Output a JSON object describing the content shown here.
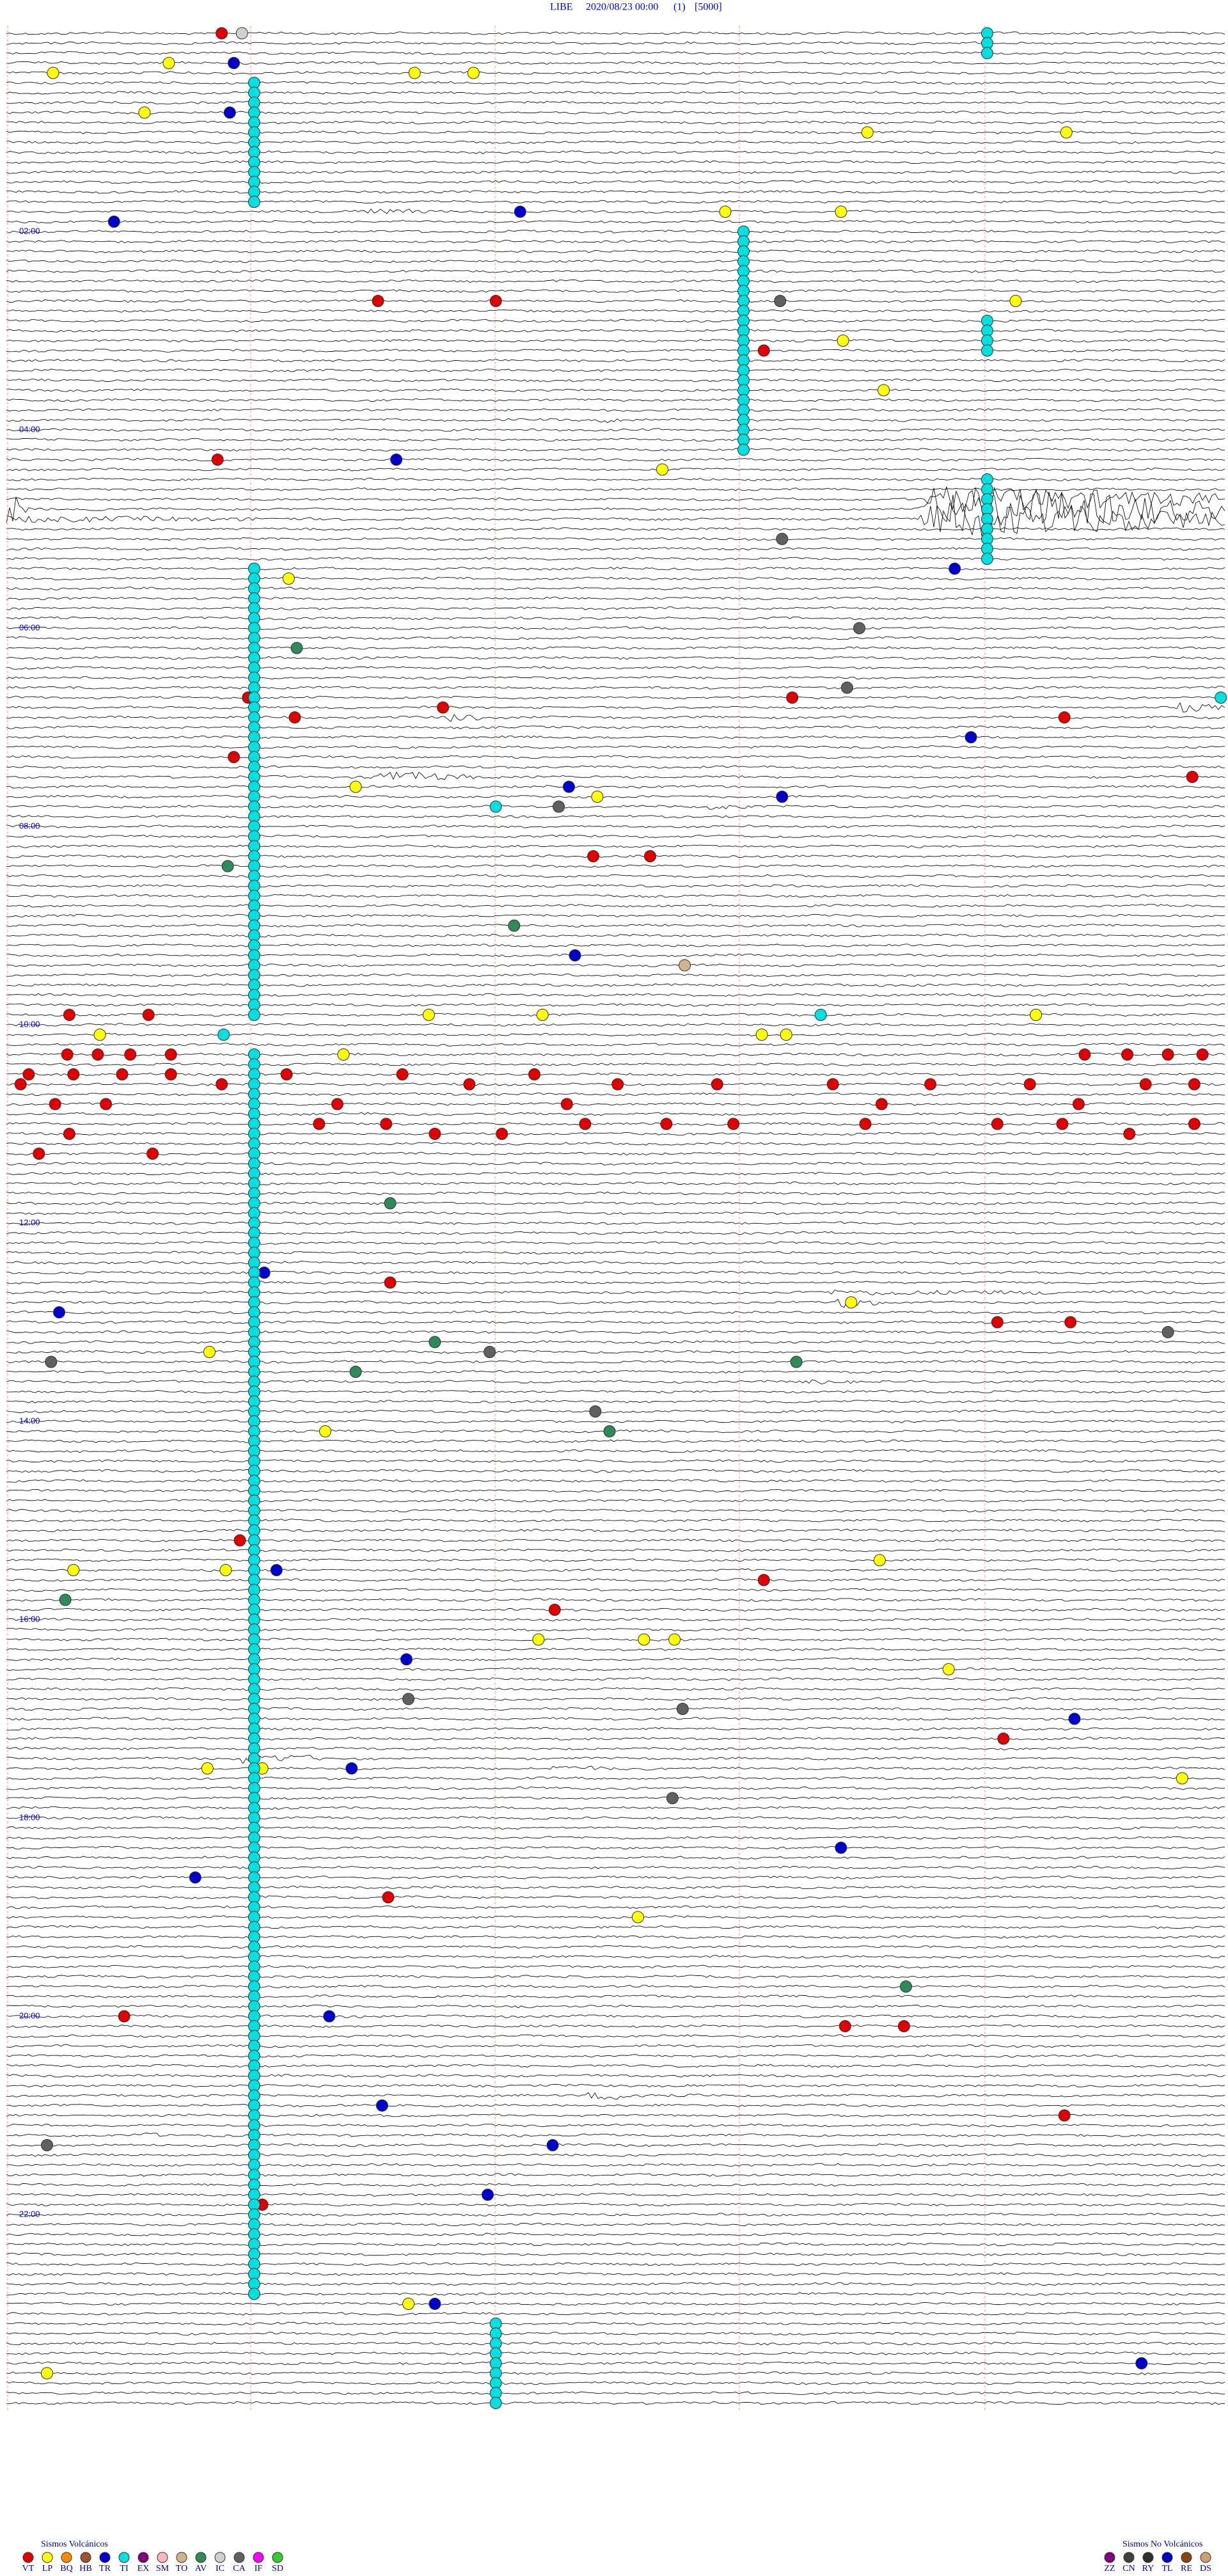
{
  "header": {
    "station": "LIBE",
    "datetime": "2020/08/23 00:00",
    "channel": "(1)",
    "scale": "[5000]"
  },
  "hour_labels": [
    "02:00",
    "04:00",
    "06:00",
    "08:00",
    "10:00",
    "12:00",
    "14:00",
    "16:00",
    "18:00",
    "20:00",
    "22:00"
  ],
  "events": [
    {
      "c": "VT",
      "l": 0,
      "m": 1.06
    },
    {
      "c": "IC",
      "l": 0,
      "m": 1.16
    },
    {
      "c": "LP",
      "l": 4,
      "m": 0.23
    },
    {
      "c": "LP",
      "l": 3,
      "m": 0.8
    },
    {
      "c": "TR",
      "l": 3,
      "m": 1.12
    },
    {
      "c": "LP",
      "l": 4,
      "m": 2.01
    },
    {
      "c": "LP",
      "l": 4,
      "m": 2.3
    },
    {
      "c": "LP",
      "l": 8,
      "m": 0.68
    },
    {
      "c": "TR",
      "l": 8,
      "m": 1.1
    },
    {
      "c": "LP",
      "l": 10,
      "m": 4.24
    },
    {
      "c": "LP",
      "l": 10,
      "m": 5.22
    },
    {
      "c": "TR",
      "l": 19,
      "m": 0.53
    },
    {
      "c": "LP",
      "l": 18,
      "m": 3.54
    },
    {
      "c": "LP",
      "l": 18,
      "m": 4.11
    },
    {
      "c": "TR",
      "l": 18,
      "m": 2.53
    },
    {
      "c": "VT",
      "l": 27,
      "m": 1.83
    },
    {
      "c": "VT",
      "l": 27,
      "m": 2.41
    },
    {
      "c": "LP",
      "l": 27,
      "m": 4.97
    },
    {
      "c": "CA",
      "l": 27,
      "m": 3.81
    },
    {
      "c": "VT",
      "l": 32,
      "m": 3.73
    },
    {
      "c": "LP",
      "l": 31,
      "m": 4.12
    },
    {
      "c": "LP",
      "l": 36,
      "m": 4.32
    },
    {
      "c": "TR",
      "l": 43,
      "m": 1.92
    },
    {
      "c": "VT",
      "l": 43,
      "m": 1.04
    },
    {
      "c": "LP",
      "l": 44,
      "m": 3.23
    },
    {
      "c": "CA",
      "l": 51,
      "m": 3.82
    },
    {
      "c": "TR",
      "l": 54,
      "m": 4.67
    },
    {
      "c": "LP",
      "l": 55,
      "m": 1.39
    },
    {
      "c": "CA",
      "l": 60,
      "m": 4.2
    },
    {
      "c": "AV",
      "l": 62,
      "m": 1.43
    },
    {
      "c": "CA",
      "l": 66,
      "m": 4.14
    },
    {
      "c": "VT",
      "l": 67,
      "m": 3.87
    },
    {
      "c": "VT",
      "l": 67,
      "m": 1.19
    },
    {
      "c": "VT",
      "l": 69,
      "m": 1.42
    },
    {
      "c": "VT",
      "l": 68,
      "m": 2.15
    },
    {
      "c": "VT",
      "l": 69,
      "m": 5.21
    },
    {
      "c": "TR",
      "l": 71,
      "m": 4.75
    },
    {
      "c": "VT",
      "l": 73,
      "m": 1.12
    },
    {
      "c": "VT",
      "l": 75,
      "m": 5.84
    },
    {
      "c": "LP",
      "l": 76,
      "m": 1.72
    },
    {
      "c": "LP",
      "l": 77,
      "m": 2.91
    },
    {
      "c": "TR",
      "l": 76,
      "m": 2.77
    },
    {
      "c": "TR",
      "l": 77,
      "m": 3.82
    },
    {
      "c": "CA",
      "l": 78,
      "m": 2.72
    },
    {
      "c": "TI",
      "l": 78,
      "m": 2.41
    },
    {
      "c": "AV",
      "l": 84,
      "m": 1.09
    },
    {
      "c": "VT",
      "l": 83,
      "m": 2.89
    },
    {
      "c": "VT",
      "l": 83,
      "m": 3.17
    },
    {
      "c": "TR",
      "l": 93,
      "m": 2.8
    },
    {
      "c": "AV",
      "l": 90,
      "m": 2.5
    },
    {
      "c": "TO",
      "l": 94,
      "m": 3.34
    },
    {
      "c": "VT",
      "l": 99,
      "m": 0.31
    },
    {
      "c": "VT",
      "l": 99,
      "m": 0.7
    },
    {
      "c": "LP",
      "l": 99,
      "m": 2.08
    },
    {
      "c": "LP",
      "l": 99,
      "m": 2.64
    },
    {
      "c": "TI",
      "l": 99,
      "m": 4.01
    },
    {
      "c": "LP",
      "l": 99,
      "m": 5.07
    },
    {
      "c": "LP",
      "l": 101,
      "m": 0.46
    },
    {
      "c": "LP",
      "l": 101,
      "m": 3.72
    },
    {
      "c": "LP",
      "l": 101,
      "m": 3.84
    },
    {
      "c": "TI",
      "l": 101,
      "m": 1.07
    },
    {
      "c": "LP",
      "l": 103,
      "m": 1.66
    },
    {
      "c": "VT",
      "l": 103,
      "m": 0.3
    },
    {
      "c": "VT",
      "l": 103,
      "m": 0.45
    },
    {
      "c": "VT",
      "l": 103,
      "m": 0.61
    },
    {
      "c": "VT",
      "l": 103,
      "m": 0.81
    },
    {
      "c": "VT",
      "l": 103,
      "m": 5.31
    },
    {
      "c": "VT",
      "l": 103,
      "m": 5.52
    },
    {
      "c": "VT",
      "l": 103,
      "m": 5.72
    },
    {
      "c": "VT",
      "l": 103,
      "m": 5.89
    },
    {
      "c": "VT",
      "l": 105,
      "m": 0.11
    },
    {
      "c": "VT",
      "l": 105,
      "m": 0.33
    },
    {
      "c": "VT",
      "l": 105,
      "m": 0.57
    },
    {
      "c": "VT",
      "l": 105,
      "m": 0.81
    },
    {
      "c": "VT",
      "l": 105,
      "m": 1.38
    },
    {
      "c": "VT",
      "l": 105,
      "m": 1.95
    },
    {
      "c": "VT",
      "l": 105,
      "m": 2.6
    },
    {
      "c": "VT",
      "l": 106,
      "m": 0.07
    },
    {
      "c": "VT",
      "l": 106,
      "m": 1.06
    },
    {
      "c": "VT",
      "l": 106,
      "m": 2.28
    },
    {
      "c": "VT",
      "l": 106,
      "m": 3.01
    },
    {
      "c": "VT",
      "l": 106,
      "m": 3.5
    },
    {
      "c": "VT",
      "l": 106,
      "m": 4.07
    },
    {
      "c": "VT",
      "l": 106,
      "m": 4.55
    },
    {
      "c": "VT",
      "l": 106,
      "m": 5.04
    },
    {
      "c": "VT",
      "l": 106,
      "m": 5.61
    },
    {
      "c": "VT",
      "l": 106,
      "m": 5.85
    },
    {
      "c": "VT",
      "l": 108,
      "m": 0.24
    },
    {
      "c": "VT",
      "l": 108,
      "m": 0.49
    },
    {
      "c": "VT",
      "l": 108,
      "m": 1.63
    },
    {
      "c": "VT",
      "l": 108,
      "m": 2.76
    },
    {
      "c": "VT",
      "l": 108,
      "m": 4.31
    },
    {
      "c": "VT",
      "l": 108,
      "m": 5.28
    },
    {
      "c": "VT",
      "l": 110,
      "m": 1.22
    },
    {
      "c": "VT",
      "l": 110,
      "m": 1.54
    },
    {
      "c": "VT",
      "l": 110,
      "m": 1.87
    },
    {
      "c": "VT",
      "l": 110,
      "m": 2.85
    },
    {
      "c": "VT",
      "l": 110,
      "m": 3.25
    },
    {
      "c": "VT",
      "l": 110,
      "m": 3.58
    },
    {
      "c": "VT",
      "l": 110,
      "m": 4.23
    },
    {
      "c": "VT",
      "l": 110,
      "m": 4.88
    },
    {
      "c": "VT",
      "l": 110,
      "m": 5.2
    },
    {
      "c": "VT",
      "l": 110,
      "m": 5.85
    },
    {
      "c": "VT",
      "l": 111,
      "m": 0.31
    },
    {
      "c": "VT",
      "l": 111,
      "m": 2.11
    },
    {
      "c": "VT",
      "l": 111,
      "m": 2.44
    },
    {
      "c": "VT",
      "l": 111,
      "m": 5.53
    },
    {
      "c": "VT",
      "l": 113,
      "m": 0.16
    },
    {
      "c": "VT",
      "l": 113,
      "m": 0.72
    },
    {
      "c": "AV",
      "l": 118,
      "m": 1.89
    },
    {
      "c": "TR",
      "l": 125,
      "m": 1.27
    },
    {
      "c": "VT",
      "l": 126,
      "m": 1.89
    },
    {
      "c": "LP",
      "l": 128,
      "m": 4.16
    },
    {
      "c": "TR",
      "l": 129,
      "m": 0.26
    },
    {
      "c": "VT",
      "l": 130,
      "m": 4.88
    },
    {
      "c": "VT",
      "l": 130,
      "m": 5.24
    },
    {
      "c": "CA",
      "l": 131,
      "m": 5.72
    },
    {
      "c": "AV",
      "l": 132,
      "m": 2.11
    },
    {
      "c": "LP",
      "l": 133,
      "m": 1.0
    },
    {
      "c": "CA",
      "l": 133,
      "m": 2.38
    },
    {
      "c": "CA",
      "l": 134,
      "m": 0.22
    },
    {
      "c": "AV",
      "l": 135,
      "m": 1.72
    },
    {
      "c": "AV",
      "l": 134,
      "m": 3.89
    },
    {
      "c": "CA",
      "l": 139,
      "m": 2.9
    },
    {
      "c": "AV",
      "l": 141,
      "m": 2.97
    },
    {
      "c": "LP",
      "l": 141,
      "m": 1.57
    },
    {
      "c": "VT",
      "l": 152,
      "m": 1.15
    },
    {
      "c": "LP",
      "l": 155,
      "m": 1.08
    },
    {
      "c": "TR",
      "l": 155,
      "m": 1.33
    },
    {
      "c": "LP",
      "l": 155,
      "m": 0.33
    },
    {
      "c": "LP",
      "l": 154,
      "m": 4.3
    },
    {
      "c": "VT",
      "l": 156,
      "m": 3.73
    },
    {
      "c": "AV",
      "l": 158,
      "m": 0.29
    },
    {
      "c": "VT",
      "l": 159,
      "m": 2.7
    },
    {
      "c": "LP",
      "l": 162,
      "m": 2.62
    },
    {
      "c": "LP",
      "l": 162,
      "m": 3.14
    },
    {
      "c": "LP",
      "l": 162,
      "m": 3.29
    },
    {
      "c": "TR",
      "l": 164,
      "m": 1.97
    },
    {
      "c": "LP",
      "l": 165,
      "m": 4.64
    },
    {
      "c": "CA",
      "l": 168,
      "m": 1.98
    },
    {
      "c": "CA",
      "l": 169,
      "m": 3.33
    },
    {
      "c": "VT",
      "l": 172,
      "m": 4.91
    },
    {
      "c": "TR",
      "l": 170,
      "m": 5.26
    },
    {
      "c": "LP",
      "l": 175,
      "m": 0.99
    },
    {
      "c": "LP",
      "l": 175,
      "m": 1.26
    },
    {
      "c": "TR",
      "l": 175,
      "m": 1.7
    },
    {
      "c": "LP",
      "l": 176,
      "m": 5.79
    },
    {
      "c": "CA",
      "l": 178,
      "m": 3.28
    },
    {
      "c": "TR",
      "l": 183,
      "m": 4.11
    },
    {
      "c": "TR",
      "l": 186,
      "m": 0.93
    },
    {
      "c": "VT",
      "l": 188,
      "m": 1.88
    },
    {
      "c": "LP",
      "l": 190,
      "m": 3.11
    },
    {
      "c": "AV",
      "l": 197,
      "m": 4.43
    },
    {
      "c": "VT",
      "l": 201,
      "m": 4.13
    },
    {
      "c": "VT",
      "l": 201,
      "m": 4.42
    },
    {
      "c": "VT",
      "l": 200,
      "m": 0.58
    },
    {
      "c": "TR",
      "l": 200,
      "m": 1.59
    },
    {
      "c": "TR",
      "l": 209,
      "m": 1.85
    },
    {
      "c": "VT",
      "l": 210,
      "m": 5.21
    },
    {
      "c": "CA",
      "l": 213,
      "m": 0.2
    },
    {
      "c": "TR",
      "l": 213,
      "m": 2.69
    },
    {
      "c": "TR",
      "l": 218,
      "m": 2.37
    },
    {
      "c": "VT",
      "l": 219,
      "m": 1.26
    },
    {
      "c": "LP",
      "l": 229,
      "m": 1.98
    },
    {
      "c": "TR",
      "l": 229,
      "m": 2.11
    },
    {
      "c": "TR",
      "l": 235,
      "m": 5.59
    },
    {
      "c": "LP",
      "l": 236,
      "m": 0.2
    },
    {
      "c": "TI",
      "l": 67,
      "m": 5.98
    },
    {
      "c": "TI",
      "l": 5,
      "m": 1.22,
      "n": 13
    },
    {
      "c": "TI",
      "l": 54,
      "m": 1.22,
      "n": 46
    },
    {
      "c": "TI",
      "l": 103,
      "m": 1.22,
      "n": 126
    },
    {
      "c": "TI",
      "l": 20,
      "m": 3.63,
      "n": 23
    },
    {
      "c": "TI",
      "l": 0,
      "m": 4.83,
      "n": 3
    },
    {
      "c": "TI",
      "l": 29,
      "m": 4.83,
      "n": 4
    },
    {
      "c": "TI",
      "l": 45,
      "m": 4.83,
      "n": 9
    },
    {
      "c": "TI",
      "l": 231,
      "m": 2.41,
      "n": 9
    }
  ],
  "legend": {
    "volcanic": {
      "title": "Sismos Volcánicos",
      "items": [
        {
          "code": "VT",
          "color": "#e00000"
        },
        {
          "code": "LP",
          "color": "#ffff00"
        },
        {
          "code": "BQ",
          "color": "#ff8c00"
        },
        {
          "code": "HB",
          "color": "#a0522d"
        },
        {
          "code": "TR",
          "color": "#0000cd"
        },
        {
          "code": "TI",
          "color": "#00e0e0"
        },
        {
          "code": "EX",
          "color": "#800080"
        },
        {
          "code": "SM",
          "color": "#ffb6c1"
        },
        {
          "code": "TO",
          "color": "#d2b48c"
        },
        {
          "code": "AV",
          "color": "#2e8b57"
        },
        {
          "code": "IC",
          "color": "#d0d0d0"
        },
        {
          "code": "CA",
          "color": "#606060"
        },
        {
          "code": "IF",
          "color": "#ff00ff"
        },
        {
          "code": "SD",
          "color": "#32cd32"
        }
      ]
    },
    "non_volcanic": {
      "title": "Sismos No Volcánicos",
      "items": [
        {
          "code": "ZZ",
          "color": "#800080"
        },
        {
          "code": "CN",
          "color": "#404040"
        },
        {
          "code": "RY",
          "color": "#303030"
        },
        {
          "code": "TL",
          "color": "#0000cd"
        },
        {
          "code": "RE",
          "color": "#8b4513"
        },
        {
          "code": "DS",
          "color": "#d2a070"
        }
      ]
    }
  }
}
